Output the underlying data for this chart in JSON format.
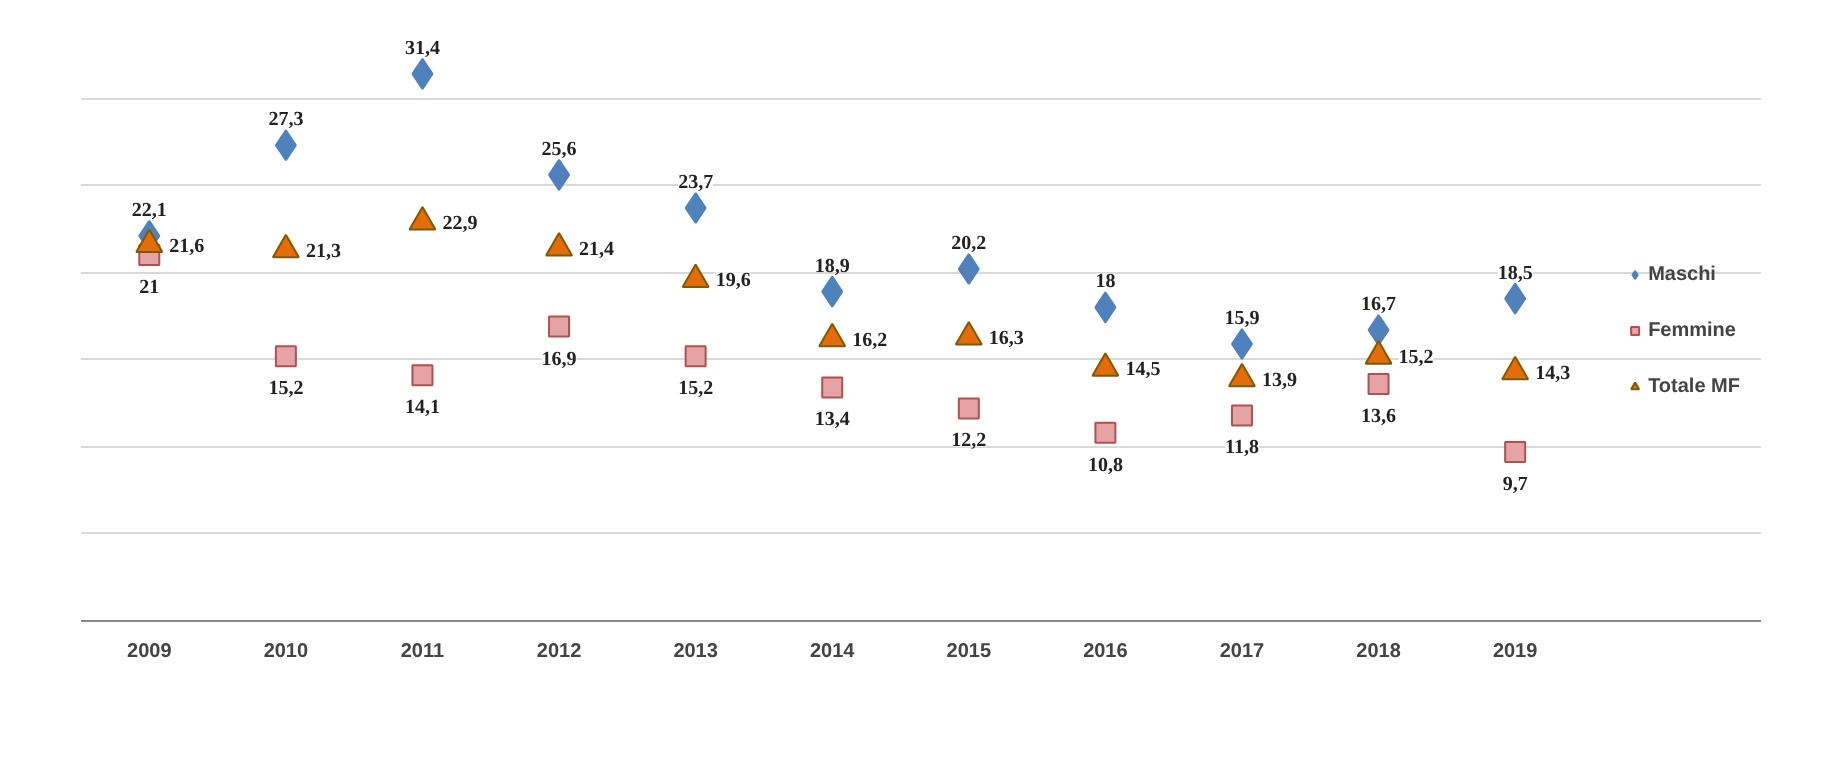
{
  "chart_data": {
    "type": "scatter",
    "categories": [
      "2009",
      "2010",
      "2011",
      "2012",
      "2013",
      "2014",
      "2015",
      "2016",
      "2017",
      "2018",
      "2019"
    ],
    "series": [
      {
        "name": "Maschi",
        "color": "#4f81bd",
        "marker": "diamond",
        "values": [
          22.1,
          27.3,
          31.4,
          25.6,
          23.7,
          18.9,
          20.2,
          18,
          15.9,
          16.7,
          18.5
        ],
        "value_labels": [
          "22,1",
          "27,3",
          "31,4",
          "25,6",
          "23,7",
          "18,9",
          "20,2",
          "18",
          "15,9",
          "16,7",
          "18,5"
        ]
      },
      {
        "name": "Femmine",
        "color": "#e6a3a3",
        "marker": "square",
        "values": [
          21,
          15.2,
          14.1,
          16.9,
          15.2,
          13.4,
          12.2,
          10.8,
          11.8,
          13.6,
          9.7
        ],
        "value_labels": [
          "21",
          "15,2",
          "14,1",
          "16,9",
          "15,2",
          "13,4",
          "12,2",
          "10,8",
          "11,8",
          "13,6",
          "9,7"
        ]
      },
      {
        "name": "Totale MF",
        "color": "#e46c0a",
        "marker": "triangle",
        "values": [
          21.6,
          21.3,
          22.9,
          21.4,
          19.6,
          16.2,
          16.3,
          14.5,
          13.9,
          15.2,
          14.3
        ],
        "value_labels": [
          "21,6",
          "21,3",
          "22,9",
          "21,4",
          "19,6",
          "16,2",
          "16,3",
          "14,5",
          "13,9",
          "15,2",
          "14,3"
        ]
      }
    ],
    "tick_labels": "x",
    "grid": "y",
    "legend": "right"
  }
}
